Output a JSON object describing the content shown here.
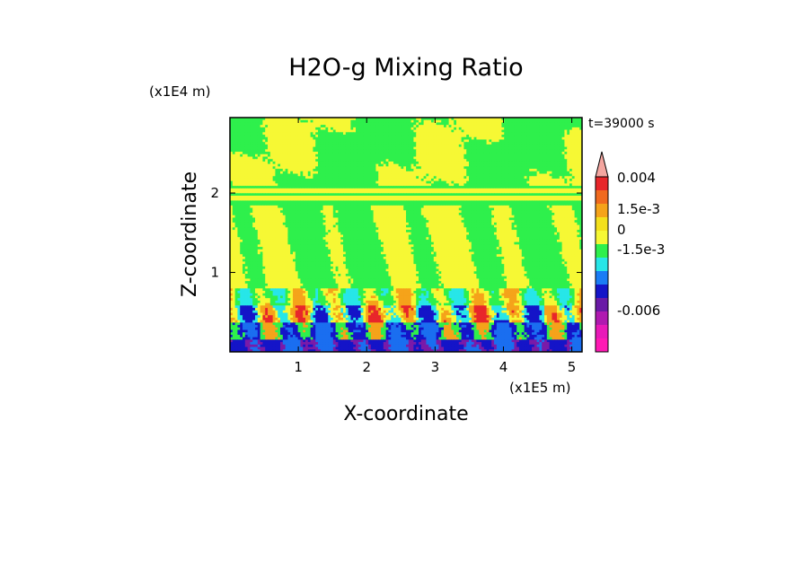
{
  "chart_data": {
    "type": "heatmap",
    "title": "H2O-g Mixing Ratio",
    "xlabel": "X-coordinate",
    "ylabel": "Z-coordinate",
    "x_unit": "(x1E5 m)",
    "y_unit": "(x1E4 m)",
    "time_label": "t=39000 s",
    "x_ticks": [
      1,
      2,
      3,
      4,
      5
    ],
    "y_ticks": [
      1,
      2
    ],
    "xlim": [
      0,
      5.15
    ],
    "ylim": [
      0,
      2.95
    ],
    "colorbar": {
      "levels": [
        "0.004",
        "1.5e-3",
        "0",
        "-1.5e-3",
        "-0.006"
      ],
      "colors": [
        "#f4a6a0",
        "#e8262a",
        "#f06a1e",
        "#f5a31a",
        "#f3e01c",
        "#f6f834",
        "#2ef04c",
        "#27e6e8",
        "#1a7cf5",
        "#1414c8",
        "#6a1aa6",
        "#b01ab0",
        "#e81ab8",
        "#ff1ab4"
      ]
    },
    "field_colors": {
      "purple": "#7a1aa8",
      "navy": "#1414c8",
      "blue": "#1a6ef0",
      "cyan": "#27e6e8",
      "green": "#2ef04c",
      "yellow": "#f6f834",
      "orange": "#f5a31a",
      "red": "#e8262a"
    }
  }
}
